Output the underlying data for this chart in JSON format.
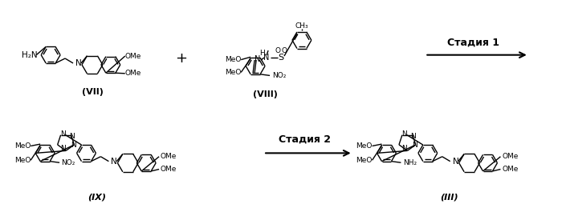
{
  "background_color": "#ffffff",
  "stage1_label": "Стадия 1",
  "stage2_label": "Стадия 2",
  "compound_VII": "(VII)",
  "compound_VIII": "(VIII)",
  "compound_IX": "(IX)",
  "compound_III": "(III)",
  "plus_sign": "+",
  "text_color": "#000000",
  "font_size_stage": 9,
  "font_size_compound": 8,
  "font_size_sub": 7
}
